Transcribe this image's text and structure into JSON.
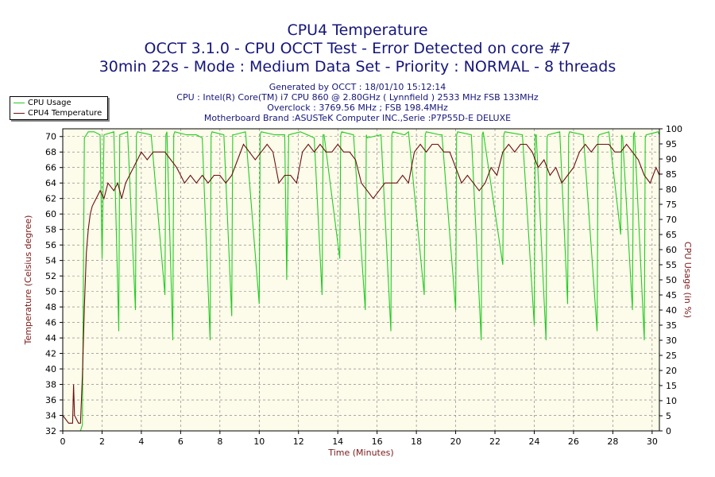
{
  "header": {
    "title": "CPU4 Temperature",
    "subtitle1": "OCCT 3.1.0 - CPU OCCT Test - Error Detected on core #7",
    "subtitle2": "30min 22s - Mode : Medium Data Set - Priority : NORMAL - 8 threads",
    "info": [
      "Generated by OCCT : 18/01/10 15:12:14",
      "CPU : Intel(R) Core(TM) i7 CPU 860 @ 2.80GHz ( Lynnfield ) 2533 MHz FSB 133MHz",
      "Overclock : 3769.56 MHz ; FSB 198.4MHz",
      "Motherboard Brand :ASUSTeK Computer INC.,Serie :P7P55D-E DELUXE"
    ]
  },
  "colors": {
    "background": "#fdfbea",
    "grid": "#7a7a7a",
    "cpu_usage": "#22cc22",
    "temperature": "#6b0f0f",
    "text": "#16167a"
  },
  "chart_data": {
    "type": "line",
    "title": "CPU4 Temperature",
    "xlabel": "Time (Minutes)",
    "ylabel": "Temperature (Celsius degree)",
    "y2label": "CPU Usage (in %)",
    "xlim": [
      0,
      30.37
    ],
    "ylim": [
      32,
      71
    ],
    "y2lim": [
      0,
      100
    ],
    "xticks": [
      0,
      2,
      4,
      6,
      8,
      10,
      12,
      14,
      16,
      18,
      20,
      22,
      24,
      26,
      28,
      30
    ],
    "yticks": [
      32,
      34,
      36,
      38,
      40,
      42,
      44,
      46,
      48,
      50,
      52,
      54,
      56,
      58,
      60,
      62,
      64,
      66,
      68,
      70
    ],
    "y2ticks": [
      0,
      5,
      10,
      15,
      20,
      25,
      30,
      35,
      40,
      45,
      50,
      55,
      60,
      65,
      70,
      75,
      80,
      85,
      90,
      95,
      100
    ],
    "grid": true,
    "legend_position": "top-left",
    "series": [
      {
        "name": "CPU Usage",
        "axis": "right",
        "x": [
          0,
          0.9,
          1.0,
          1.1,
          1.3,
          1.6,
          1.9,
          2.0,
          2.1,
          2.6,
          2.85,
          2.9,
          3.3,
          3.7,
          3.75,
          3.8,
          4.5,
          5.2,
          5.25,
          5.3,
          5.6,
          5.65,
          5.7,
          6.3,
          6.8,
          7.1,
          7.5,
          7.55,
          7.6,
          8.2,
          8.6,
          8.65,
          8.7,
          9.3,
          10.0,
          10.05,
          10.1,
          10.8,
          11.3,
          11.4,
          11.5,
          12.1,
          12.8,
          13.2,
          13.25,
          13.3,
          14.1,
          14.15,
          14.2,
          14.8,
          15.4,
          15.45,
          15.5,
          16.2,
          16.7,
          16.75,
          16.8,
          17.4,
          17.6,
          18.4,
          18.45,
          18.5,
          19.2,
          19.3,
          20.0,
          20.05,
          20.1,
          20.8,
          21.3,
          21.35,
          21.4,
          22.4,
          22.45,
          22.5,
          23.4,
          24.0,
          24.05,
          24.1,
          24.6,
          24.65,
          24.7,
          25.3,
          25.7,
          25.75,
          25.8,
          26.5,
          27.2,
          27.25,
          27.3,
          27.8,
          28.4,
          28.45,
          28.5,
          29.0,
          29.05,
          29.1,
          29.6,
          29.65,
          29.7,
          30.3,
          30.37
        ],
        "values": [
          0,
          0,
          2,
          97,
          99,
          99,
          98,
          57,
          98,
          99,
          33,
          98,
          99,
          40,
          98,
          99,
          98,
          45,
          98,
          99,
          30,
          98,
          99,
          98,
          98,
          97,
          30,
          98,
          99,
          98,
          38,
          98,
          98,
          99,
          42,
          98,
          99,
          98,
          98,
          50,
          98,
          99,
          97,
          45,
          98,
          98,
          57,
          98,
          99,
          98,
          40,
          98,
          97,
          98,
          33,
          98,
          99,
          98,
          99,
          45,
          98,
          99,
          98,
          98,
          40,
          98,
          99,
          98,
          30,
          98,
          99,
          55,
          98,
          99,
          98,
          35,
          98,
          98,
          30,
          97,
          98,
          99,
          42,
          98,
          99,
          98,
          33,
          97,
          98,
          99,
          65,
          98,
          97,
          40,
          98,
          99,
          30,
          97,
          98,
          99,
          98
        ]
      },
      {
        "name": "CPU4 Temperature",
        "axis": "left",
        "x": [
          0,
          0.3,
          0.5,
          0.55,
          0.6,
          0.8,
          0.9,
          1.0,
          1.1,
          1.2,
          1.3,
          1.4,
          1.5,
          1.7,
          1.9,
          2.1,
          2.3,
          2.6,
          2.8,
          3.0,
          3.2,
          3.4,
          3.6,
          3.8,
          4.0,
          4.3,
          4.6,
          4.9,
          5.2,
          5.5,
          5.8,
          6.0,
          6.2,
          6.5,
          6.8,
          7.1,
          7.4,
          7.7,
          8.0,
          8.3,
          8.6,
          8.9,
          9.2,
          9.5,
          9.8,
          10.1,
          10.4,
          10.7,
          11.0,
          11.3,
          11.6,
          11.9,
          12.2,
          12.5,
          12.8,
          13.1,
          13.4,
          13.7,
          14.0,
          14.3,
          14.6,
          14.9,
          15.2,
          15.5,
          15.8,
          16.1,
          16.4,
          16.7,
          17.0,
          17.3,
          17.6,
          17.9,
          18.2,
          18.5,
          18.8,
          19.1,
          19.4,
          19.7,
          20.0,
          20.3,
          20.6,
          20.9,
          21.2,
          21.5,
          21.8,
          22.1,
          22.4,
          22.7,
          23.0,
          23.3,
          23.6,
          23.9,
          24.2,
          24.5,
          24.8,
          25.1,
          25.4,
          25.7,
          26.0,
          26.3,
          26.6,
          26.9,
          27.2,
          27.5,
          27.8,
          28.1,
          28.4,
          28.7,
          29.0,
          29.3,
          29.6,
          29.9,
          30.2,
          30.37
        ],
        "values": [
          34,
          33,
          33,
          38,
          34,
          33,
          33,
          39,
          48,
          55,
          58,
          60,
          61,
          62,
          63,
          62,
          64,
          63,
          64,
          62,
          64,
          65,
          66,
          67,
          68,
          67,
          68,
          68,
          68,
          67,
          66,
          65,
          64,
          65,
          64,
          65,
          64,
          65,
          65,
          64,
          65,
          67,
          69,
          68,
          67,
          68,
          69,
          68,
          64,
          65,
          65,
          64,
          68,
          69,
          68,
          69,
          68,
          68,
          69,
          68,
          68,
          67,
          64,
          63,
          62,
          63,
          64,
          64,
          64,
          65,
          64,
          68,
          69,
          68,
          69,
          69,
          68,
          68,
          66,
          64,
          65,
          64,
          63,
          64,
          66,
          65,
          68,
          69,
          68,
          69,
          69,
          68,
          66,
          67,
          65,
          66,
          64,
          65,
          66,
          68,
          69,
          68,
          69,
          69,
          69,
          68,
          68,
          69,
          68,
          67,
          65,
          64,
          66,
          65
        ]
      }
    ]
  }
}
